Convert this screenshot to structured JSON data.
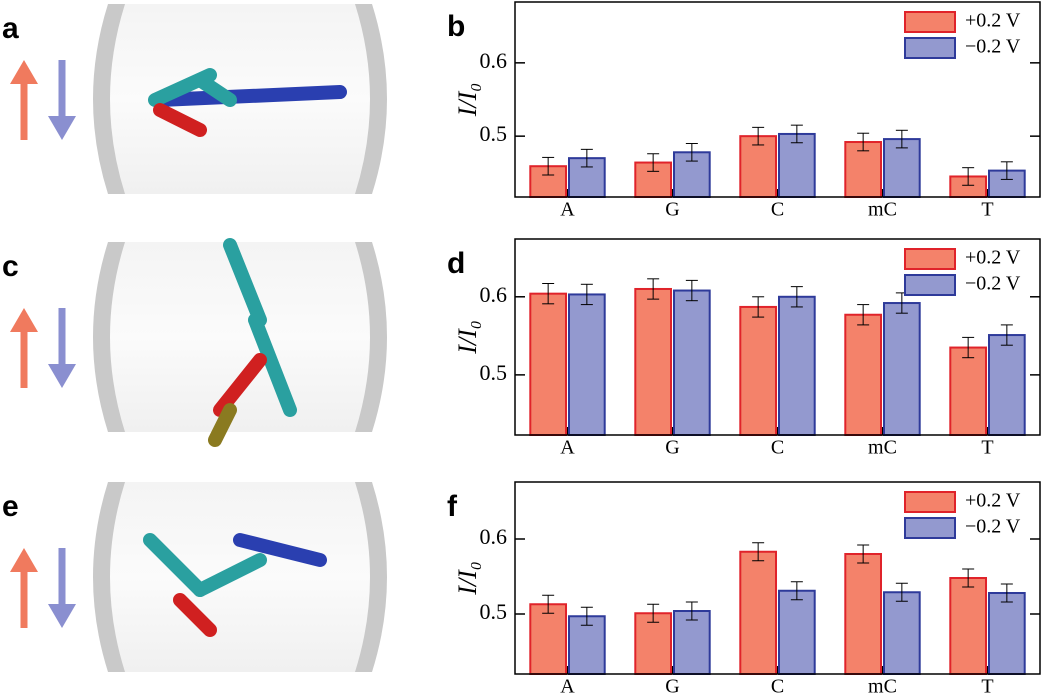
{
  "image_panels": [
    {
      "label": "a"
    },
    {
      "label": "c"
    },
    {
      "label": "e"
    }
  ],
  "chart_data": [
    {
      "type": "bar",
      "panel_label": "b",
      "y_label": "I/I₀",
      "categories": [
        "A",
        "G",
        "C",
        "mC",
        "T"
      ],
      "series": [
        {
          "name": "+0.2 V",
          "color": "#f4826a",
          "edge_color": "#e0232a",
          "values": [
            0.459,
            0.464,
            0.5,
            0.492,
            0.445
          ],
          "errors": [
            0.012,
            0.012,
            0.012,
            0.012,
            0.012
          ]
        },
        {
          "name": "−0.2 V",
          "color": "#9399cf",
          "edge_color": "#2e3a9a",
          "values": [
            0.47,
            0.478,
            0.503,
            0.496,
            0.453
          ],
          "errors": [
            0.012,
            0.012,
            0.012,
            0.012,
            0.012
          ]
        }
      ],
      "ylim": [
        0.417,
        0.683
      ],
      "yticks": [
        0.5,
        0.6
      ],
      "legend": "upper right"
    },
    {
      "type": "bar",
      "panel_label": "d",
      "y_label": "I/I₀",
      "categories": [
        "A",
        "G",
        "C",
        "mC",
        "T"
      ],
      "series": [
        {
          "name": "+0.2 V",
          "color": "#f4826a",
          "edge_color": "#e0232a",
          "values": [
            0.604,
            0.61,
            0.587,
            0.577,
            0.535
          ],
          "errors": [
            0.013,
            0.013,
            0.013,
            0.013,
            0.013
          ]
        },
        {
          "name": "−0.2 V",
          "color": "#9399cf",
          "edge_color": "#2e3a9a",
          "values": [
            0.603,
            0.608,
            0.6,
            0.592,
            0.551
          ],
          "errors": [
            0.013,
            0.013,
            0.013,
            0.013,
            0.013
          ]
        }
      ],
      "ylim": [
        0.423,
        0.674
      ],
      "yticks": [
        0.5,
        0.6
      ],
      "legend": "upper right"
    },
    {
      "type": "bar",
      "panel_label": "f",
      "y_label": "I/I₀",
      "categories": [
        "A",
        "G",
        "C",
        "mC",
        "T"
      ],
      "series": [
        {
          "name": "+0.2 V",
          "color": "#f4826a",
          "edge_color": "#e0232a",
          "values": [
            0.513,
            0.501,
            0.583,
            0.58,
            0.548
          ],
          "errors": [
            0.012,
            0.012,
            0.012,
            0.012,
            0.012
          ]
        },
        {
          "name": "−0.2 V",
          "color": "#9399cf",
          "edge_color": "#2e3a9a",
          "values": [
            0.497,
            0.504,
            0.531,
            0.529,
            0.528
          ],
          "errors": [
            0.012,
            0.012,
            0.012,
            0.012,
            0.012
          ]
        }
      ],
      "ylim": [
        0.42,
        0.676
      ],
      "yticks": [
        0.5,
        0.6
      ],
      "legend": "upper right"
    }
  ]
}
